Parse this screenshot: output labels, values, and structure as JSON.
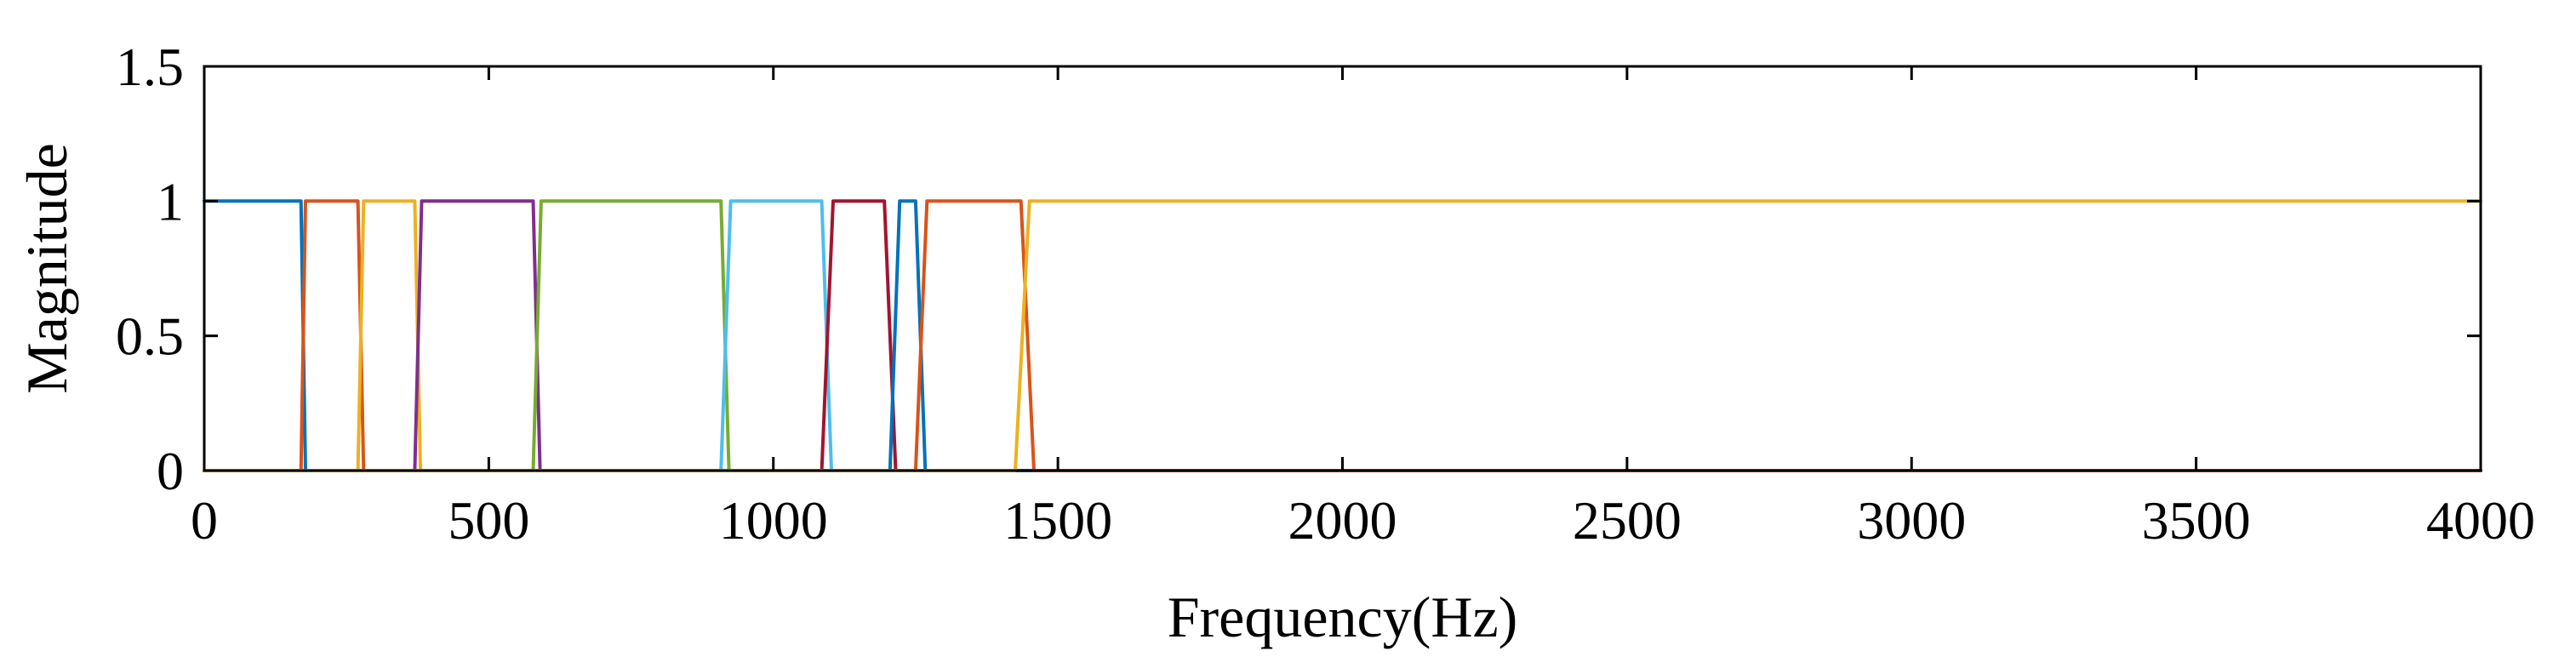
{
  "chart_data": {
    "type": "line",
    "title": "",
    "xlabel": "Frequency(Hz)",
    "ylabel": "Magnitude",
    "xlim": [
      0,
      4000
    ],
    "ylim": [
      0,
      1.5
    ],
    "xticks": [
      0,
      500,
      1000,
      1500,
      2000,
      2500,
      3000,
      3500,
      4000
    ],
    "xtick_labels": [
      "0",
      "500",
      "1000",
      "1500",
      "2000",
      "2500",
      "3000",
      "3500",
      "4000"
    ],
    "yticks": [
      0,
      0.5,
      1,
      1.5
    ],
    "ytick_labels": [
      "0",
      "0.5",
      "1",
      "1.5"
    ],
    "grid": false,
    "series": [
      {
        "color": "#0072BD",
        "x": [
          0,
          170,
          178,
          4000
        ],
        "y": [
          1,
          1,
          0,
          0
        ]
      },
      {
        "color": "#D95319",
        "x": [
          0,
          170,
          178,
          270,
          280,
          4000
        ],
        "y": [
          0,
          0,
          1,
          1,
          0,
          0
        ]
      },
      {
        "color": "#EDB120",
        "x": [
          0,
          270,
          280,
          370,
          380,
          4000
        ],
        "y": [
          0,
          0,
          1,
          1,
          0,
          0
        ]
      },
      {
        "color": "#7E2F8E",
        "x": [
          0,
          370,
          382,
          578,
          590,
          4000
        ],
        "y": [
          0,
          0,
          1,
          1,
          0,
          0
        ]
      },
      {
        "color": "#77AC30",
        "x": [
          0,
          578,
          592,
          908,
          922,
          4000
        ],
        "y": [
          0,
          0,
          1,
          1,
          0,
          0
        ]
      },
      {
        "color": "#4DBEEE",
        "x": [
          0,
          908,
          925,
          1085,
          1102,
          4000
        ],
        "y": [
          0,
          0,
          1,
          1,
          0,
          0
        ]
      },
      {
        "color": "#A2142F",
        "x": [
          0,
          1085,
          1105,
          1195,
          1215,
          4000
        ],
        "y": [
          0,
          0,
          1,
          1,
          0,
          0
        ]
      },
      {
        "color": "#0072BD",
        "x": [
          0,
          1205,
          1222,
          1250,
          1267,
          4000
        ],
        "y": [
          0,
          0,
          1,
          1,
          0,
          0
        ]
      },
      {
        "color": "#D95319",
        "x": [
          0,
          1250,
          1270,
          1435,
          1458,
          4000
        ],
        "y": [
          0,
          0,
          1,
          1,
          0,
          0
        ]
      },
      {
        "color": "#EDB120",
        "x": [
          0,
          1425,
          1450,
          4000
        ],
        "y": [
          0,
          0,
          1,
          1
        ]
      }
    ]
  }
}
